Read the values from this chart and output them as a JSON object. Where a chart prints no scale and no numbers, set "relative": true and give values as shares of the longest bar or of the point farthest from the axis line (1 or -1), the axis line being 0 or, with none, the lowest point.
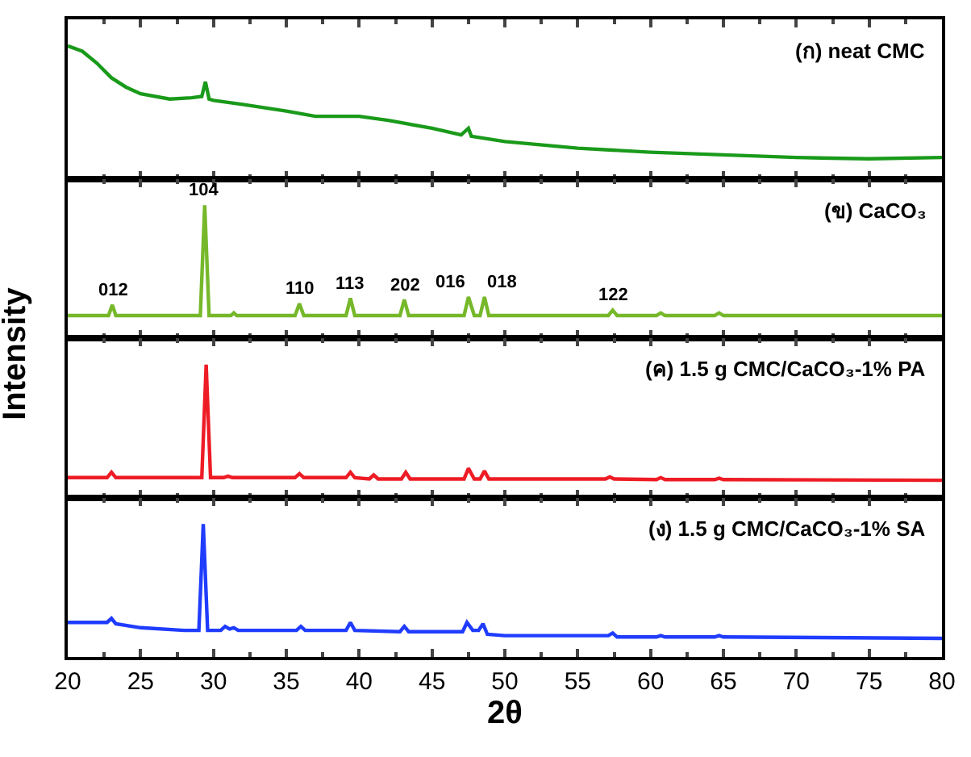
{
  "chart_data": [
    {
      "type": "line",
      "title": "(ก) neat CMC",
      "relative": true,
      "xlim": [
        20,
        80
      ],
      "xticks": [
        20,
        25,
        30,
        35,
        40,
        45,
        50,
        55,
        60,
        65,
        70,
        75,
        80
      ],
      "tick_labels": false,
      "marker": "none",
      "line_style": "solid",
      "series": [
        {
          "color": "#1a9a1a",
          "x": [
            20,
            21,
            22,
            23,
            24,
            25,
            27,
            28.5,
            29.2,
            29.45,
            29.7,
            30,
            32,
            35,
            37,
            40,
            42,
            45,
            47,
            47.5,
            47.7,
            50,
            55,
            60,
            65,
            70,
            75,
            80
          ],
          "values": [
            1,
            0.96,
            0.87,
            0.76,
            0.69,
            0.64,
            0.6,
            0.61,
            0.62,
            0.73,
            0.6,
            0.59,
            0.56,
            0.51,
            0.47,
            0.47,
            0.44,
            0.38,
            0.33,
            0.38,
            0.32,
            0.28,
            0.23,
            0.2,
            0.18,
            0.16,
            0.15,
            0.16
          ]
        }
      ]
    },
    {
      "type": "line",
      "title": "(ข) CaCO₃",
      "ylabel": "Intensity",
      "relative": true,
      "xlim": [
        20,
        80
      ],
      "xticks": [
        20,
        25,
        30,
        35,
        40,
        45,
        50,
        55,
        60,
        65,
        70,
        75,
        80
      ],
      "tick_labels": false,
      "marker": "none",
      "line_style": "solid",
      "series": [
        {
          "color": "#76b82a",
          "x": [
            20,
            22.8,
            23.06,
            23.3,
            29.1,
            29.4,
            29.7,
            31.2,
            31.4,
            31.6,
            35.6,
            35.9,
            36.2,
            39.1,
            39.4,
            39.7,
            42.8,
            43.1,
            43.4,
            47.2,
            47.5,
            47.9,
            48.3,
            48.6,
            48.9,
            57.1,
            57.4,
            57.7,
            60.4,
            60.7,
            61.0,
            64.4,
            64.7,
            65.0,
            80
          ],
          "values": [
            0.17,
            0.17,
            0.25,
            0.17,
            0.17,
            1,
            0.17,
            0.17,
            0.19,
            0.17,
            0.17,
            0.26,
            0.17,
            0.17,
            0.3,
            0.17,
            0.17,
            0.29,
            0.17,
            0.17,
            0.31,
            0.17,
            0.17,
            0.31,
            0.17,
            0.17,
            0.21,
            0.17,
            0.17,
            0.19,
            0.17,
            0.17,
            0.19,
            0.17,
            0.17
          ]
        }
      ],
      "annotations": [
        {
          "text": "012",
          "x": 23.06,
          "y": 0.25
        },
        {
          "text": "104",
          "x": 29.4,
          "y": 1
        },
        {
          "text": "110",
          "x": 35.9,
          "y": 0.26
        },
        {
          "text": "113",
          "x": 39.4,
          "y": 0.3
        },
        {
          "text": "202",
          "x": 43.1,
          "y": 0.29
        },
        {
          "text": "016",
          "x": 47.5,
          "y": 0.31
        },
        {
          "text": "018",
          "x": 48.6,
          "y": 0.31
        },
        {
          "text": "122",
          "x": 57.4,
          "y": 0.21
        }
      ]
    },
    {
      "type": "line",
      "title": "(ค) 1.5 g CMC/CaCO₃-1% PA",
      "relative": true,
      "xlim": [
        20,
        80
      ],
      "xticks": [
        20,
        25,
        30,
        35,
        40,
        45,
        50,
        55,
        60,
        65,
        70,
        75,
        80
      ],
      "tick_labels": false,
      "marker": "none",
      "line_style": "solid",
      "series": [
        {
          "color": "#ee1c25",
          "x": [
            20,
            22.7,
            23.0,
            23.3,
            29.2,
            29.5,
            29.8,
            30.7,
            31.0,
            31.3,
            35.6,
            35.9,
            36.2,
            39.1,
            39.4,
            39.7,
            40.7,
            41.0,
            41.3,
            42.9,
            43.2,
            43.5,
            47.2,
            47.5,
            47.9,
            48.3,
            48.6,
            48.9,
            56.9,
            57.2,
            57.5,
            60.4,
            60.7,
            61.0,
            64.4,
            64.7,
            65.0,
            80
          ],
          "values": [
            0.15,
            0.15,
            0.19,
            0.15,
            0.15,
            1,
            0.15,
            0.15,
            0.16,
            0.15,
            0.15,
            0.18,
            0.15,
            0.15,
            0.19,
            0.15,
            0.14,
            0.17,
            0.14,
            0.14,
            0.19,
            0.14,
            0.14,
            0.22,
            0.14,
            0.14,
            0.2,
            0.14,
            0.14,
            0.155,
            0.14,
            0.135,
            0.15,
            0.135,
            0.135,
            0.145,
            0.135,
            0.13
          ]
        }
      ]
    },
    {
      "type": "line",
      "title": "(ง) 1.5 g CMC/CaCO₃-1% SA",
      "xlabel": "2θ",
      "relative": true,
      "xlim": [
        20,
        80
      ],
      "xticks": [
        20,
        25,
        30,
        35,
        40,
        45,
        50,
        55,
        60,
        65,
        70,
        75,
        80
      ],
      "tick_labels": "x",
      "marker": "none",
      "line_style": "solid",
      "series": [
        {
          "color": "#1f3cff",
          "x": [
            20,
            22.7,
            23,
            23.3,
            25,
            28,
            29.0,
            29.3,
            29.6,
            30.5,
            30.8,
            31.1,
            31.4,
            31.7,
            35.7,
            36,
            36.3,
            39.1,
            39.4,
            39.7,
            42.8,
            43.1,
            43.4,
            47.1,
            47.4,
            47.8,
            48.2,
            48.5,
            48.8,
            50,
            57.1,
            57.4,
            57.7,
            60.4,
            60.7,
            61.0,
            64.4,
            64.7,
            65.0,
            80
          ],
          "values": [
            0.26,
            0.26,
            0.29,
            0.25,
            0.22,
            0.2,
            0.2,
            1,
            0.2,
            0.2,
            0.23,
            0.21,
            0.22,
            0.2,
            0.2,
            0.23,
            0.2,
            0.2,
            0.26,
            0.2,
            0.19,
            0.23,
            0.19,
            0.19,
            0.26,
            0.2,
            0.2,
            0.25,
            0.17,
            0.16,
            0.16,
            0.18,
            0.15,
            0.15,
            0.16,
            0.15,
            0.15,
            0.16,
            0.15,
            0.14
          ]
        }
      ]
    }
  ]
}
